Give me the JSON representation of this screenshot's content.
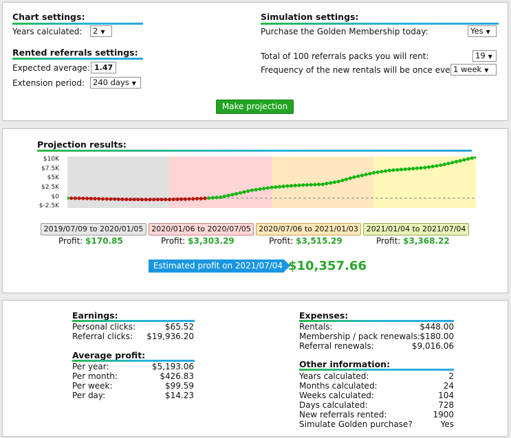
{
  "chart_settings": {
    "title": "Chart settings:",
    "years_label": "Years calculated:",
    "years_value": "2"
  },
  "rented_settings": {
    "title": "Rented referrals settings:",
    "expected_label": "Expected average:",
    "expected_value": "1.47",
    "extension_label": "Extension period:",
    "extension_value": "240 days"
  },
  "simulation_settings": {
    "title": "Simulation settings:",
    "golden_label": "Purchase the Golden Membership today:",
    "golden_value": "Yes",
    "packs_label": "Total of 100 referrals packs you will rent:",
    "packs_value": "19",
    "frequency_label": "Frequency of the new rentals will be once every:",
    "frequency_value": "1 week"
  },
  "make_projection_label": "Make projection",
  "projection": {
    "title": "Projection results:",
    "periods": [
      {
        "label": "2019/07/09 to 2020/01/05",
        "profit_label": "Profit:",
        "profit": "$170.85",
        "bg": "#e6e6e6",
        "border": "#999999"
      },
      {
        "label": "2020/01/06 to 2020/07/05",
        "profit_label": "Profit:",
        "profit": "$3,303.29",
        "bg": "#ffd6d6",
        "border": "#c98080"
      },
      {
        "label": "2020/07/06 to 2021/01/03",
        "profit_label": "Profit:",
        "profit": "$3,515.29",
        "bg": "#ffe8b8",
        "border": "#c8a050"
      },
      {
        "label": "2021/01/04 to 2021/07/04",
        "profit_label": "Profit:",
        "profit": "$3,368.22",
        "bg": "#e8f3b8",
        "border": "#98a850"
      }
    ],
    "estimated_label": "Estimated profit on 2021/07/04",
    "estimated_value": "$10,357.66"
  },
  "chart_data": {
    "type": "line",
    "title": "",
    "xlabel": "",
    "ylabel": "",
    "y_ticks": [
      "$10K",
      "$7.5K",
      "$5K",
      "$2.5K",
      "$0",
      "$-2.5K"
    ],
    "ylim": [
      -2500,
      10500
    ],
    "x": [
      0,
      4,
      8,
      13,
      17,
      21,
      26,
      30,
      34,
      39,
      43,
      47,
      52,
      56,
      60,
      65,
      69,
      73,
      78,
      82,
      86,
      91,
      95,
      99,
      104
    ],
    "values": [
      0,
      -60,
      -170,
      -280,
      -340,
      -360,
      -330,
      -250,
      -120,
      230,
      1100,
      2000,
      2700,
      3050,
      3300,
      3500,
      4200,
      5300,
      6400,
      7000,
      7300,
      7700,
      8300,
      9200,
      10350
    ],
    "period_colors": [
      "#e0e0e0",
      "#ffd4d4",
      "#ffe7bf",
      "#fff8b8"
    ],
    "negative_color": "#c01010",
    "positive_color": "#12b812"
  },
  "earnings": {
    "title": "Earnings:",
    "rows": [
      {
        "label": "Personal clicks:",
        "value": "$65.52"
      },
      {
        "label": "Referral clicks:",
        "value": "$19,936.20"
      }
    ]
  },
  "average_profit": {
    "title": "Average profit:",
    "rows": [
      {
        "label": "Per year:",
        "value": "$5,193.06"
      },
      {
        "label": "Per month:",
        "value": "$426.83"
      },
      {
        "label": "Per week:",
        "value": "$99.59"
      },
      {
        "label": "Per day:",
        "value": "$14.23"
      }
    ]
  },
  "expenses": {
    "title": "Expenses:",
    "rows": [
      {
        "label": "Rentals:",
        "value": "$448.00"
      },
      {
        "label": "Membership / pack renewals:",
        "value": "$180.00"
      },
      {
        "label": "Referral renewals:",
        "value": "$9,016.06"
      }
    ]
  },
  "other_info": {
    "title": "Other information:",
    "rows": [
      {
        "label": "Years calculated:",
        "value": "2"
      },
      {
        "label": "Months calculated:",
        "value": "24"
      },
      {
        "label": "Weeks calculated:",
        "value": "104"
      },
      {
        "label": "Days calculated:",
        "value": "728"
      },
      {
        "label": "New referrals rented:",
        "value": "1900"
      },
      {
        "label": "Simulate Golden purchase?",
        "value": "Yes"
      }
    ]
  }
}
